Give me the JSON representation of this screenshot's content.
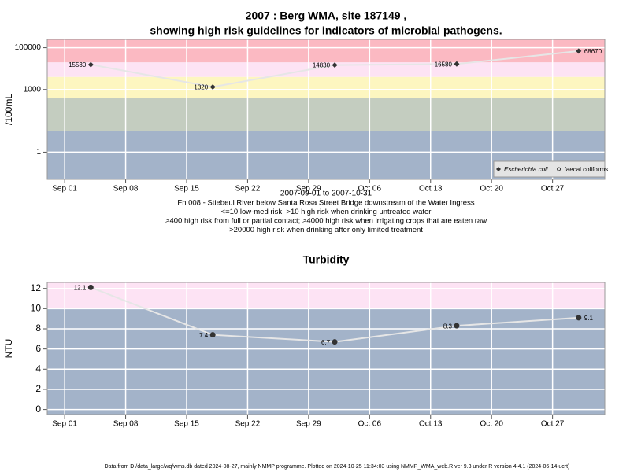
{
  "chart_data": [
    {
      "type": "line",
      "log": true,
      "title": [
        "2007 : Berg WMA, site 187149 ,",
        "showing high risk guidelines for indicators of microbial pathogens."
      ],
      "ylabel": "/100mL",
      "subtitle": "2007-09-01 to 2007-10-31",
      "annotations": [
        "Fh 008 - Stiebeul River below Santa Rosa Street Bridge downstream of the Water Ingress",
        "<=10 low-med risk; >10 high risk when drinking untreated water",
        ">400 high risk from full or partial contact; >4000 high risk when irrigating crops that are eaten raw",
        ">20000 high risk when drinking after only limited treatment"
      ],
      "x": [
        "2007-09-04",
        "2007-09-18",
        "2007-10-02",
        "2007-10-16",
        "2007-10-30"
      ],
      "series": [
        {
          "name": "Escherichia coli",
          "color": "#333333",
          "marker": "diamond",
          "values": [
            15530,
            1320,
            14830,
            16580,
            68670
          ]
        },
        {
          "name": "faecal coliforms",
          "color": "#333333",
          "marker": "hollow",
          "values": [
            null,
            null,
            null,
            null,
            null
          ]
        }
      ],
      "band_edges": [
        10,
        400,
        4000,
        20000
      ],
      "band_colors": [
        "#a3b3c9",
        "#c4cdc0",
        "#fdf6c0",
        "#fde3f4",
        "#fbb9c2"
      ],
      "xlim": [
        "2007-08-30",
        "2007-11-02"
      ],
      "xticks": [
        {
          "value": "2007-09-01",
          "label": "Sep 01"
        },
        {
          "value": "2007-09-08",
          "label": "Sep 08"
        },
        {
          "value": "2007-09-15",
          "label": "Sep 15"
        },
        {
          "value": "2007-09-22",
          "label": "Sep 22"
        },
        {
          "value": "2007-09-29",
          "label": "Sep 29"
        },
        {
          "value": "2007-10-06",
          "label": "Oct 06"
        },
        {
          "value": "2007-10-13",
          "label": "Oct 13"
        },
        {
          "value": "2007-10-20",
          "label": "Oct 20"
        },
        {
          "value": "2007-10-27",
          "label": "Oct 27"
        }
      ],
      "ylim": [
        0.05,
        250000
      ],
      "yticks": [
        1,
        1000,
        100000
      ],
      "grid": true,
      "legend": "bottom-right"
    },
    {
      "type": "line",
      "log": false,
      "title": [
        "Turbidity"
      ],
      "ylabel": "NTU",
      "x": [
        "2007-09-04",
        "2007-09-18",
        "2007-10-02",
        "2007-10-16",
        "2007-10-30"
      ],
      "series": [
        {
          "name": "Turbidity",
          "color": "#333333",
          "marker": "dot",
          "values": [
            12.1,
            7.4,
            6.7,
            8.3,
            9.1
          ]
        }
      ],
      "band_edges": [
        10
      ],
      "band_colors": [
        "#a3b3c9",
        "#fde3f4"
      ],
      "xlim": [
        "2007-08-30",
        "2007-11-02"
      ],
      "xticks": [
        {
          "value": "2007-09-01",
          "label": "Sep 01"
        },
        {
          "value": "2007-09-08",
          "label": "Sep 08"
        },
        {
          "value": "2007-09-15",
          "label": "Sep 15"
        },
        {
          "value": "2007-09-22",
          "label": "Sep 22"
        },
        {
          "value": "2007-09-29",
          "label": "Sep 29"
        },
        {
          "value": "2007-10-06",
          "label": "Oct 06"
        },
        {
          "value": "2007-10-13",
          "label": "Oct 13"
        },
        {
          "value": "2007-10-20",
          "label": "Oct 20"
        },
        {
          "value": "2007-10-27",
          "label": "Oct 27"
        }
      ],
      "ylim": [
        -0.5,
        12.6
      ],
      "yticks": [
        0,
        2,
        4,
        6,
        8,
        10,
        12
      ],
      "grid": true
    }
  ],
  "footer": "Data from D:/data_large/wq/wms.db dated 2024-08-27, mainly NMMP programme. Plotted on 2024-10-25 11:34:03 using NMMP_WMA_web.R ver 9.3 under R version 4.4.1 (2024-06-14 ucrt)"
}
